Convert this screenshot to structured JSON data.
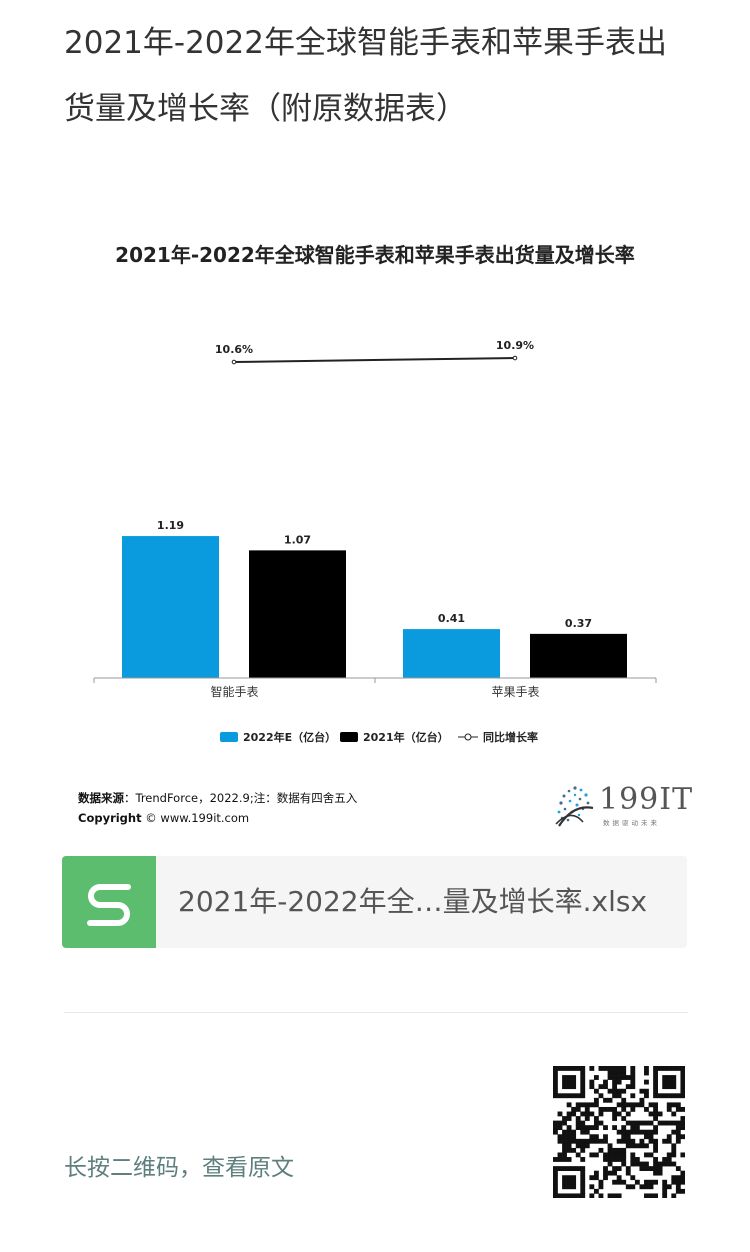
{
  "article": {
    "title": "2021年-2022年全球智能手表和苹果手表出货量及增长率（附原数据表）"
  },
  "chart_data": {
    "type": "bar",
    "title": "2021年-2022年全球智能手表和苹果手表出货量及增长率",
    "categories": [
      "智能手表",
      "苹果手表"
    ],
    "series": [
      {
        "name": "2022年E（亿台）",
        "values": [
          1.19,
          0.41
        ],
        "color": "#0a9bdf"
      },
      {
        "name": "2021年（亿台）",
        "values": [
          1.07,
          0.37
        ],
        "color": "#000000"
      }
    ],
    "line_series": {
      "name": "同比增长率",
      "values": [
        10.6,
        10.9
      ],
      "labels": [
        "10.6%",
        "10.9%"
      ]
    },
    "value_labels": [
      [
        "1.19",
        "0.41"
      ],
      [
        "1.07",
        "0.37"
      ]
    ],
    "ylim": [
      0,
      1.3
    ],
    "legend": "bottom",
    "grid": false
  },
  "source": {
    "label": "数据来源",
    "text": "：TrendForce，2022.9;注：数据有四舍五入",
    "copyright_label": "Copyright",
    "copyright_text": "© www.199it.com"
  },
  "logo": {
    "text": "199IT",
    "sub": "数据驱动未来"
  },
  "attachment": {
    "file_name": "2021年-2022年全…量及增长率.xlsx",
    "icon": "spreadsheet-s-icon",
    "icon_color": "#5cbd6e"
  },
  "footer": {
    "hint": "长按二维码，查看原文",
    "qr": "qr-code-icon"
  }
}
